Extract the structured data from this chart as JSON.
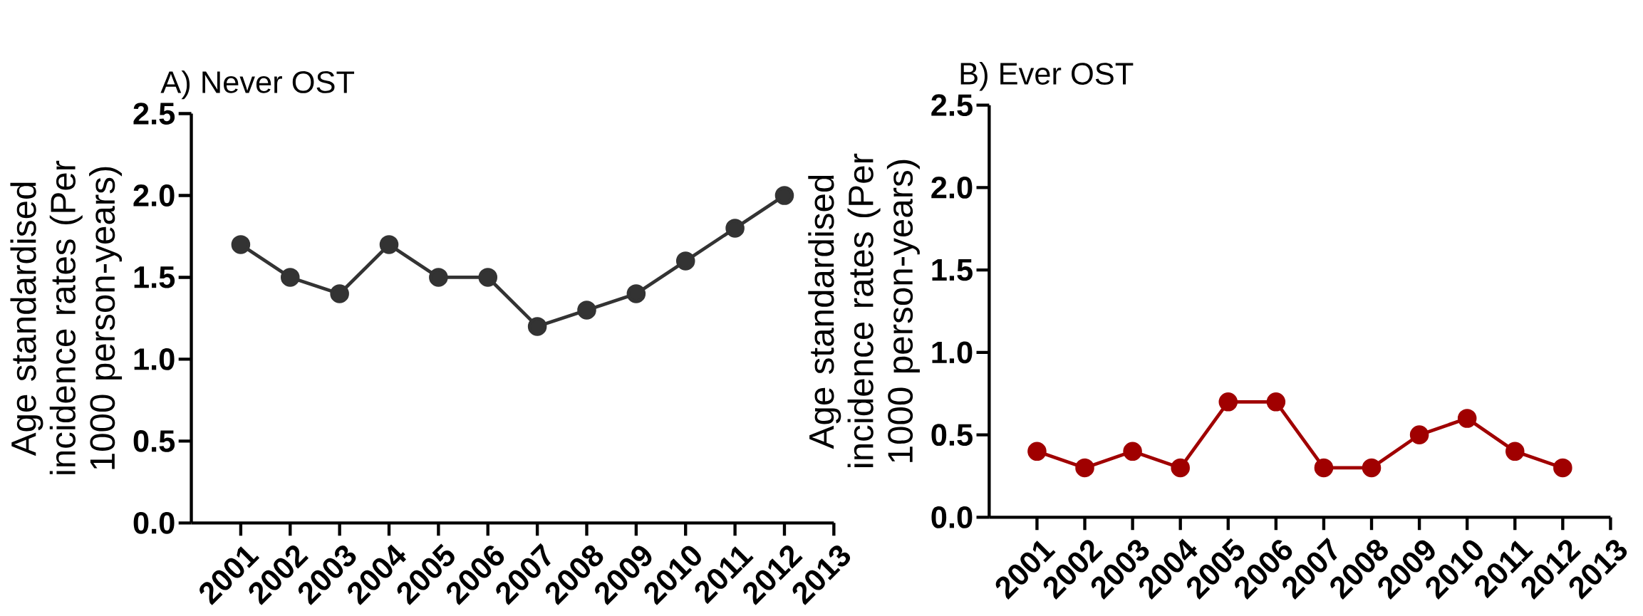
{
  "chart_data": [
    {
      "type": "line",
      "title": "A) Never OST",
      "ylabel": "Age standardised incidence rates (Per 1000 person-years)",
      "categories": [
        "2001",
        "2002",
        "2003",
        "2004",
        "2005",
        "2006",
        "2007",
        "2008",
        "2009",
        "2010",
        "2011",
        "2012",
        "2013"
      ],
      "series": [
        {
          "color": "#333333",
          "values": [
            1.7,
            1.5,
            1.4,
            1.7,
            1.5,
            1.5,
            1.2,
            1.3,
            1.4,
            1.6,
            1.8,
            2.0,
            null
          ]
        }
      ],
      "ylim": [
        0,
        2.5
      ],
      "yticks": [
        {
          "value": 0,
          "label": "0.0"
        },
        0.5,
        {
          "value": 1,
          "label": "1.0"
        },
        1.5,
        {
          "value": 2,
          "label": "2.0"
        },
        2.5
      ],
      "marker": "circle",
      "line_style": "solid",
      "grid": false
    },
    {
      "type": "line",
      "title": "B) Ever OST",
      "ylabel": "Age standardised incidence rates (Per 1000 person-years)",
      "categories": [
        "2001",
        "2002",
        "2003",
        "2004",
        "2005",
        "2006",
        "2007",
        "2008",
        "2009",
        "2010",
        "2011",
        "2012",
        "2013"
      ],
      "series": [
        {
          "color": "#a00000",
          "values": [
            0.4,
            0.3,
            0.4,
            0.3,
            0.7,
            0.7,
            0.3,
            0.3,
            0.5,
            0.6,
            0.4,
            0.3,
            null
          ]
        }
      ],
      "ylim": [
        0,
        2.5
      ],
      "yticks": [
        {
          "value": 0,
          "label": "0.0"
        },
        0.5,
        {
          "value": 1,
          "label": "1.0"
        },
        1.5,
        {
          "value": 2,
          "label": "2.0"
        },
        2.5
      ],
      "marker": "circle",
      "line_style": "solid",
      "grid": false
    }
  ]
}
